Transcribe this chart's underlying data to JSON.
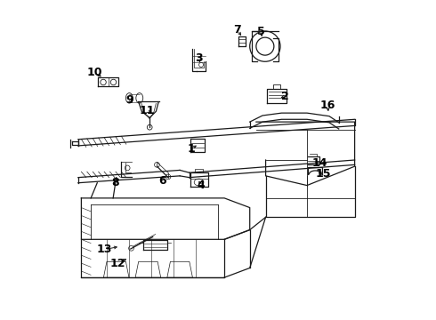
{
  "bg_color": "#ffffff",
  "line_color": "#1a1a1a",
  "label_color": "#000000",
  "fig_width": 4.9,
  "fig_height": 3.6,
  "dpi": 100,
  "label_positions": {
    "1": [
      0.415,
      0.535,
      0.44,
      0.55
    ],
    "2": [
      0.71,
      0.7,
      0.69,
      0.695
    ],
    "3": [
      0.44,
      0.82,
      0.445,
      0.8
    ],
    "4": [
      0.445,
      0.42,
      0.44,
      0.435
    ],
    "5": [
      0.635,
      0.905,
      0.64,
      0.88
    ],
    "6": [
      0.325,
      0.435,
      0.33,
      0.45
    ],
    "7": [
      0.56,
      0.91,
      0.578,
      0.885
    ],
    "8": [
      0.178,
      0.43,
      0.195,
      0.445
    ],
    "9": [
      0.222,
      0.69,
      0.237,
      0.675
    ],
    "10": [
      0.112,
      0.775,
      0.14,
      0.758
    ],
    "11": [
      0.278,
      0.655,
      0.293,
      0.64
    ],
    "12": [
      0.185,
      0.175,
      0.22,
      0.192
    ],
    "13": [
      0.142,
      0.218,
      0.192,
      0.228
    ],
    "14": [
      0.82,
      0.49,
      0.798,
      0.497
    ],
    "15": [
      0.832,
      0.456,
      0.808,
      0.462
    ],
    "16": [
      0.845,
      0.672,
      0.848,
      0.645
    ]
  }
}
